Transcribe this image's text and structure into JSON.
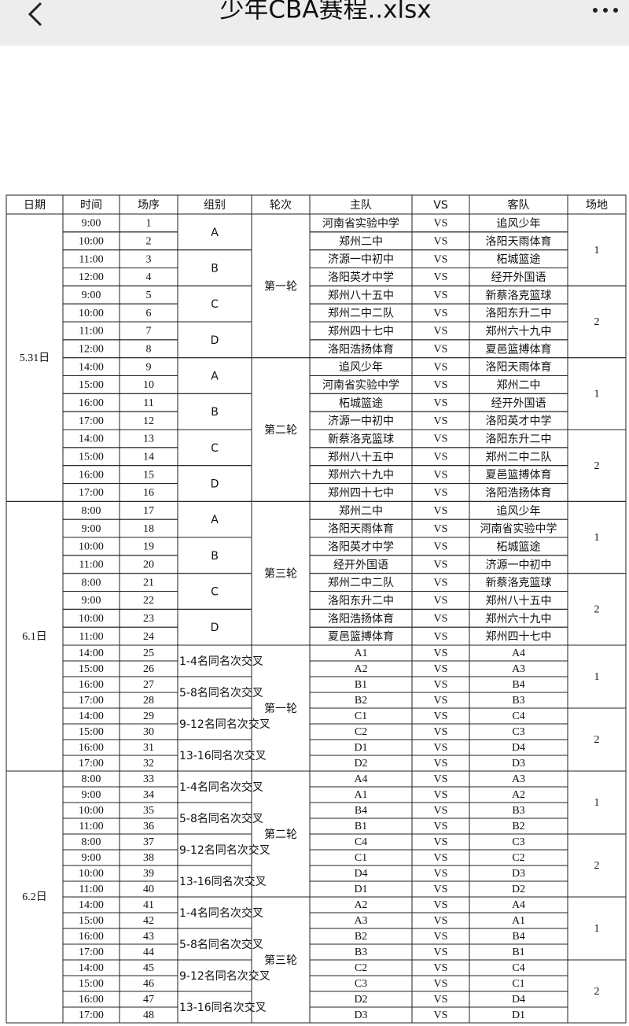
{
  "header": {
    "title": "少年CBA赛程..xlsx"
  },
  "table": {
    "columns": [
      "日期",
      "时间",
      "场序",
      "组别",
      "轮次",
      "主队",
      "VS",
      "客队",
      "场地"
    ],
    "days": [
      {
        "date": "5.31日",
        "rounds": [
          {
            "round": "第一轮",
            "venues": [
              {
                "venue": 1,
                "groups": [
                  {
                    "group": "A",
                    "matches": [
                      [
                        "9:00",
                        1,
                        "河南省实验中学",
                        "VS",
                        "追风少年"
                      ],
                      [
                        "10:00",
                        2,
                        "郑州二中",
                        "VS",
                        "洛阳天雨体育"
                      ]
                    ]
                  },
                  {
                    "group": "B",
                    "matches": [
                      [
                        "11:00",
                        3,
                        "济源一中初中",
                        "VS",
                        "柘城篮途"
                      ],
                      [
                        "12:00",
                        4,
                        "洛阳英才中学",
                        "VS",
                        "经开外国语"
                      ]
                    ]
                  }
                ]
              },
              {
                "venue": 2,
                "groups": [
                  {
                    "group": "C",
                    "matches": [
                      [
                        "9:00",
                        5,
                        "郑州八十五中",
                        "VS",
                        "新蔡洛克篮球"
                      ],
                      [
                        "10:00",
                        6,
                        "郑州二中二队",
                        "VS",
                        "洛阳东升二中"
                      ]
                    ]
                  },
                  {
                    "group": "D",
                    "matches": [
                      [
                        "11:00",
                        7,
                        "郑州四十七中",
                        "VS",
                        "郑州六十九中"
                      ],
                      [
                        "12:00",
                        8,
                        "洛阳浩扬体育",
                        "VS",
                        "夏邑篮搏体育"
                      ]
                    ]
                  }
                ]
              }
            ]
          },
          {
            "round": "第二轮",
            "venues": [
              {
                "venue": 1,
                "groups": [
                  {
                    "group": "A",
                    "matches": [
                      [
                        "14:00",
                        9,
                        "追风少年",
                        "VS",
                        "洛阳天雨体育"
                      ],
                      [
                        "15:00",
                        10,
                        "河南省实验中学",
                        "VS",
                        "郑州二中"
                      ]
                    ]
                  },
                  {
                    "group": "B",
                    "matches": [
                      [
                        "16:00",
                        11,
                        "柘城篮途",
                        "VS",
                        "经开外国语"
                      ],
                      [
                        "17:00",
                        12,
                        "济源一中初中",
                        "VS",
                        "洛阳英才中学"
                      ]
                    ]
                  }
                ]
              },
              {
                "venue": 2,
                "groups": [
                  {
                    "group": "C",
                    "matches": [
                      [
                        "14:00",
                        13,
                        "新蔡洛克篮球",
                        "VS",
                        "洛阳东升二中"
                      ],
                      [
                        "15:00",
                        14,
                        "郑州八十五中",
                        "VS",
                        "郑州二中二队"
                      ]
                    ]
                  },
                  {
                    "group": "D",
                    "matches": [
                      [
                        "16:00",
                        15,
                        "郑州六十九中",
                        "VS",
                        "夏邑篮搏体育"
                      ],
                      [
                        "17:00",
                        16,
                        "郑州四十七中",
                        "VS",
                        "洛阳浩扬体育"
                      ]
                    ]
                  }
                ]
              }
            ]
          }
        ]
      },
      {
        "date": "6.1日",
        "rounds": [
          {
            "round": "第三轮",
            "venues": [
              {
                "venue": 1,
                "groups": [
                  {
                    "group": "A",
                    "matches": [
                      [
                        "8:00",
                        17,
                        "郑州二中",
                        "VS",
                        "追风少年"
                      ],
                      [
                        "9:00",
                        18,
                        "洛阳天雨体育",
                        "VS",
                        "河南省实验中学"
                      ]
                    ]
                  },
                  {
                    "group": "B",
                    "matches": [
                      [
                        "10:00",
                        19,
                        "洛阳英才中学",
                        "VS",
                        "柘城篮途"
                      ],
                      [
                        "11:00",
                        20,
                        "经开外国语",
                        "VS",
                        "济源一中初中"
                      ]
                    ]
                  }
                ]
              },
              {
                "venue": 2,
                "groups": [
                  {
                    "group": "C",
                    "matches": [
                      [
                        "8:00",
                        21,
                        "郑州二中二队",
                        "VS",
                        "新蔡洛克篮球"
                      ],
                      [
                        "9:00",
                        22,
                        "洛阳东升二中",
                        "VS",
                        "郑州八十五中"
                      ]
                    ]
                  },
                  {
                    "group": "D",
                    "matches": [
                      [
                        "10:00",
                        23,
                        "洛阳浩扬体育",
                        "VS",
                        "郑州六十九中"
                      ],
                      [
                        "11:00",
                        24,
                        "夏邑篮搏体育",
                        "VS",
                        "郑州四十七中"
                      ]
                    ]
                  }
                ]
              }
            ]
          },
          {
            "round": "第一轮",
            "venues": [
              {
                "venue": 1,
                "groups": [
                  {
                    "group": "1-4名同名次交叉",
                    "matches": [
                      [
                        "14:00",
                        25,
                        "A1",
                        "VS",
                        "A4"
                      ],
                      [
                        "15:00",
                        26,
                        "A2",
                        "VS",
                        "A3"
                      ]
                    ]
                  },
                  {
                    "group": "5-8名同名次交叉",
                    "matches": [
                      [
                        "16:00",
                        27,
                        "B1",
                        "VS",
                        "B4"
                      ],
                      [
                        "17:00",
                        28,
                        "B2",
                        "VS",
                        "B3"
                      ]
                    ]
                  }
                ]
              },
              {
                "venue": 2,
                "groups": [
                  {
                    "group": "9-12名同名次交叉",
                    "matches": [
                      [
                        "14:00",
                        29,
                        "C1",
                        "VS",
                        "C4"
                      ],
                      [
                        "15:00",
                        30,
                        "C2",
                        "VS",
                        "C3"
                      ]
                    ]
                  },
                  {
                    "group": "13-16同名次交叉",
                    "matches": [
                      [
                        "16:00",
                        31,
                        "D1",
                        "VS",
                        "D4"
                      ],
                      [
                        "17:00",
                        32,
                        "D2",
                        "VS",
                        "D3"
                      ]
                    ]
                  }
                ]
              }
            ]
          }
        ]
      },
      {
        "date": "6.2日",
        "rounds": [
          {
            "round": "第二轮",
            "venues": [
              {
                "venue": 1,
                "groups": [
                  {
                    "group": "1-4名同名次交叉",
                    "matches": [
                      [
                        "8:00",
                        33,
                        "A4",
                        "VS",
                        "A3"
                      ],
                      [
                        "9:00",
                        34,
                        "A1",
                        "VS",
                        "A2"
                      ]
                    ]
                  },
                  {
                    "group": "5-8名同名次交叉",
                    "matches": [
                      [
                        "10:00",
                        35,
                        "B4",
                        "VS",
                        "B3"
                      ],
                      [
                        "11:00",
                        36,
                        "B1",
                        "VS",
                        "B2"
                      ]
                    ]
                  }
                ]
              },
              {
                "venue": 2,
                "groups": [
                  {
                    "group": "9-12名同名次交叉",
                    "matches": [
                      [
                        "8:00",
                        37,
                        "C4",
                        "VS",
                        "C3"
                      ],
                      [
                        "9:00",
                        38,
                        "C1",
                        "VS",
                        "C2"
                      ]
                    ]
                  },
                  {
                    "group": "13-16同名次交叉",
                    "matches": [
                      [
                        "10:00",
                        39,
                        "D4",
                        "VS",
                        "D3"
                      ],
                      [
                        "11:00",
                        40,
                        "D1",
                        "VS",
                        "D2"
                      ]
                    ]
                  }
                ]
              }
            ]
          },
          {
            "round": "第三轮",
            "venues": [
              {
                "venue": 1,
                "groups": [
                  {
                    "group": "1-4名同名次交叉",
                    "matches": [
                      [
                        "14:00",
                        41,
                        "A2",
                        "VS",
                        "A4"
                      ],
                      [
                        "15:00",
                        42,
                        "A3",
                        "VS",
                        "A1"
                      ]
                    ]
                  },
                  {
                    "group": "5-8名同名次交叉",
                    "matches": [
                      [
                        "16:00",
                        43,
                        "B2",
                        "VS",
                        "B4"
                      ],
                      [
                        "17:00",
                        44,
                        "B3",
                        "VS",
                        "B1"
                      ]
                    ]
                  }
                ]
              },
              {
                "venue": 2,
                "groups": [
                  {
                    "group": "9-12名同名次交叉",
                    "matches": [
                      [
                        "14:00",
                        45,
                        "C2",
                        "VS",
                        "C4"
                      ],
                      [
                        "15:00",
                        46,
                        "C3",
                        "VS",
                        "C1"
                      ]
                    ]
                  },
                  {
                    "group": "13-16同名次交叉",
                    "matches": [
                      [
                        "16:00",
                        47,
                        "D2",
                        "VS",
                        "D4"
                      ],
                      [
                        "17:00",
                        48,
                        "D3",
                        "VS",
                        "D1"
                      ]
                    ]
                  }
                ]
              }
            ]
          }
        ]
      }
    ]
  }
}
